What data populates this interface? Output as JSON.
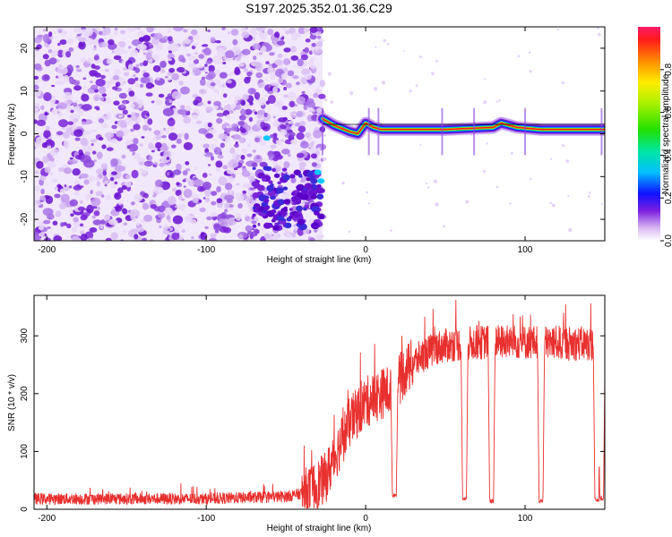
{
  "title": "S197.2025.352.01.36.C29",
  "colors": {
    "spectrogram_background": "#9b59d6",
    "snr_line": "#e8302e",
    "axis": "#000000"
  },
  "chart_data": [
    {
      "type": "heatmap",
      "name": "spectrogram",
      "title": "S197.2025.352.01.36.C29",
      "xlabel": "Height of straight line (km)",
      "ylabel": "Frequency (Hz)",
      "xlim": [
        -208,
        150
      ],
      "ylim": [
        -25,
        25
      ],
      "x_ticks": [
        -200,
        -100,
        0,
        100
      ],
      "x_tick_labels": [
        "-200",
        "-100",
        "0",
        "100"
      ],
      "y_ticks": [
        -20,
        -10,
        0,
        10,
        20
      ],
      "y_tick_labels": [
        "-20",
        "-10",
        "0",
        "10",
        "20"
      ],
      "noise_region_x": [
        -208,
        -27
      ],
      "signal_start_x": -27,
      "signal_frequency": [
        {
          "x": -27,
          "y": 3.5
        },
        {
          "x": -20,
          "y": 2
        },
        {
          "x": -10,
          "y": 0.5
        },
        {
          "x": -5,
          "y": 0
        },
        {
          "x": 0,
          "y": 2.5
        },
        {
          "x": 5,
          "y": 1.5
        },
        {
          "x": 10,
          "y": 1
        },
        {
          "x": 50,
          "y": 1
        },
        {
          "x": 80,
          "y": 1.5
        },
        {
          "x": 85,
          "y": 2.5
        },
        {
          "x": 95,
          "y": 1.5
        },
        {
          "x": 110,
          "y": 1
        },
        {
          "x": 150,
          "y": 1
        }
      ],
      "dark_cluster": {
        "x": [
          -70,
          -27
        ],
        "y": [
          -22,
          -8
        ]
      },
      "colorbar": {
        "label": "Normalized spectral amplitude",
        "ticks": [
          0.0,
          0.2,
          0.4,
          0.6,
          0.8
        ],
        "tick_labels": [
          "0.0",
          "0.2",
          "0.4",
          "0.6",
          "0.8"
        ],
        "range": [
          0.0,
          1.0
        ]
      }
    },
    {
      "type": "line",
      "name": "snr",
      "xlabel": "Height of straight line (km)",
      "ylabel": "SNR (10 * v/v)",
      "xlim": [
        -208,
        150
      ],
      "ylim": [
        0,
        370
      ],
      "x_ticks": [
        -200,
        -100,
        0,
        100
      ],
      "x_tick_labels": [
        "-200",
        "-100",
        "0",
        "100"
      ],
      "y_ticks": [
        0,
        100,
        200,
        300
      ],
      "y_tick_labels": [
        "0",
        "100",
        "200",
        "300"
      ],
      "series": [
        {
          "name": "SNR",
          "envelope": [
            {
              "x": -208,
              "y": 18
            },
            {
              "x": -100,
              "y": 18
            },
            {
              "x": -50,
              "y": 22
            },
            {
              "x": -35,
              "y": 30
            },
            {
              "x": -25,
              "y": 55
            },
            {
              "x": -18,
              "y": 100
            },
            {
              "x": -10,
              "y": 150
            },
            {
              "x": 0,
              "y": 185
            },
            {
              "x": 10,
              "y": 200
            },
            {
              "x": 18,
              "y": 210
            },
            {
              "x": 25,
              "y": 240
            },
            {
              "x": 35,
              "y": 265
            },
            {
              "x": 45,
              "y": 280
            },
            {
              "x": 55,
              "y": 285
            },
            {
              "x": 80,
              "y": 290
            },
            {
              "x": 120,
              "y": 288
            },
            {
              "x": 150,
              "y": 285
            }
          ],
          "dropouts": [
            {
              "x": 18,
              "y": 20
            },
            {
              "x": 62,
              "y": 15
            },
            {
              "x": 79,
              "y": 10
            },
            {
              "x": 110,
              "y": 10
            },
            {
              "x": 145,
              "y": 12
            },
            {
              "x": 148,
              "y": 15
            }
          ]
        }
      ]
    }
  ]
}
